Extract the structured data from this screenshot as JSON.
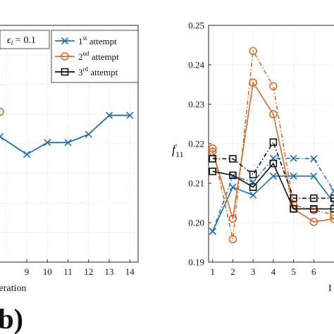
{
  "colors": {
    "s1": "#1f6fb0",
    "s2": "#d26a2e",
    "s3": "#111111"
  },
  "panel_letter": "(b)",
  "chart_data": [
    {
      "type": "line",
      "title": "",
      "xlabel": "Iteration",
      "ylabel": "",
      "xticks": [
        "9",
        "10",
        "11",
        "12",
        "13",
        "14"
      ],
      "xlim": [
        7.7,
        14.4
      ],
      "ylim": [
        0,
        1
      ],
      "grid": true,
      "annotation": "ϵi = 0.1",
      "legend_placement": "top-right",
      "legend": [
        {
          "base": "1",
          "sup": "st",
          "rest": " attempt"
        },
        {
          "base": "2",
          "sup": "nd",
          "rest": " attempt"
        },
        {
          "base": "3",
          "sup": "rd",
          "rest": " attempt"
        }
      ],
      "series": [
        {
          "x": [
            7.7,
            9,
            10,
            11,
            12,
            13,
            14
          ],
          "values": [
            0.53,
            0.455,
            0.505,
            0.505,
            0.54,
            0.62,
            0.62
          ]
        },
        {
          "x": [
            7.7
          ],
          "values": [
            0.635
          ]
        }
      ]
    },
    {
      "type": "line",
      "title": "",
      "xlabel": "",
      "ylabel": "f11",
      "x": [
        1,
        2,
        3,
        4,
        5,
        6,
        7
      ],
      "xticks": [
        "1",
        "2",
        "3",
        "4",
        "5",
        "6"
      ],
      "yticks": [
        "0.19",
        "0.20",
        "0.21",
        "0.22",
        "0.23",
        "0.24",
        "0.25"
      ],
      "xlim": [
        0.8,
        7.0
      ],
      "ylim": [
        0.19,
        0.25
      ],
      "grid": true,
      "series": [
        {
          "style": "solid",
          "values": [
            0.1978,
            0.209,
            0.207,
            0.2118,
            0.2118,
            0.2118,
            0.205
          ]
        },
        {
          "style": "dashdot",
          "values": [
            0.1978,
            0.2118,
            0.2103,
            0.2163,
            0.2163,
            0.2162,
            0.208
          ]
        },
        {
          "style": "solid",
          "values": [
            0.218,
            0.201,
            0.2355,
            0.2275,
            0.2035,
            0.2002,
            0.201
          ]
        },
        {
          "style": "dashdot",
          "values": [
            0.2188,
            0.1958,
            0.2435,
            0.2346,
            0.2045,
            0.2032,
            0.202
          ]
        },
        {
          "style": "solid",
          "values": [
            0.213,
            0.212,
            0.209,
            0.215,
            0.2035,
            0.2035,
            0.2035
          ]
        },
        {
          "style": "dashdot",
          "values": [
            0.2162,
            0.2162,
            0.2122,
            0.2204,
            0.2062,
            0.2062,
            0.2062
          ]
        }
      ]
    }
  ]
}
